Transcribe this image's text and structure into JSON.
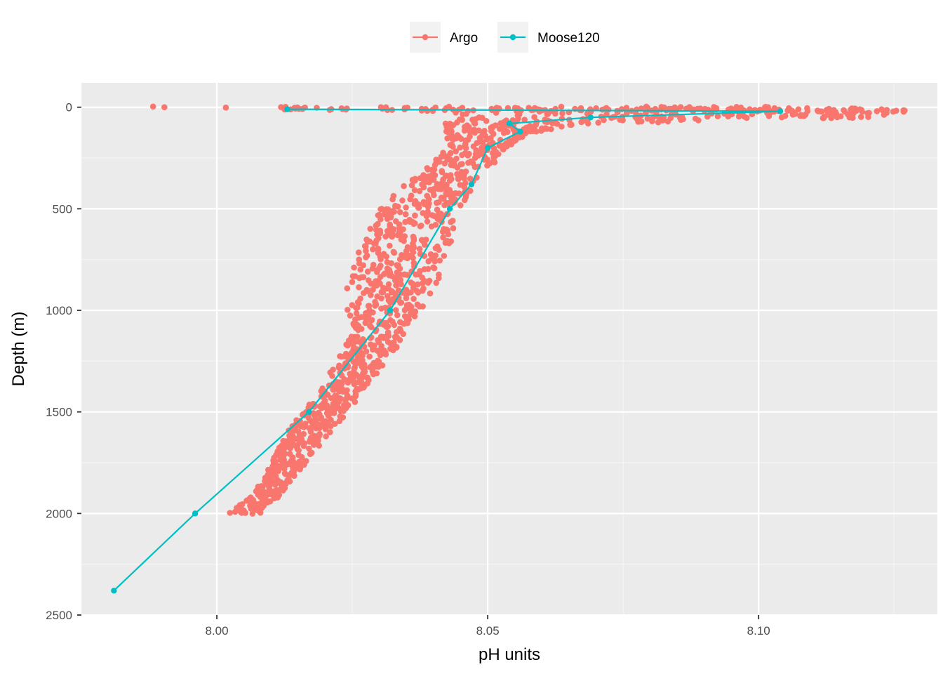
{
  "chart_data": {
    "type": "scatter",
    "xlabel": "pH units",
    "ylabel": "Depth (m)",
    "xlim": [
      7.975,
      8.133
    ],
    "ylim": [
      2500,
      -120
    ],
    "y_reversed": true,
    "grid": true,
    "legend_position": "top-center",
    "x_ticks": [
      "8.00",
      "8.05",
      "8.10"
    ],
    "x_tick_values": [
      8.0,
      8.05,
      8.1
    ],
    "y_ticks": [
      "0",
      "500",
      "1000",
      "1500",
      "2000",
      "2500"
    ],
    "y_tick_values": [
      0,
      500,
      1000,
      1500,
      2000,
      2500
    ],
    "series": [
      {
        "name": "Argo",
        "color": "#F8766D",
        "mode": "markers",
        "depth_profile": {
          "depths": [
            0,
            10,
            20,
            50,
            80,
            120,
            200,
            300,
            400,
            500,
            600,
            700,
            800,
            900,
            1000,
            1100,
            1200,
            1300,
            1400,
            1500,
            1600,
            1700,
            1800,
            1900,
            2000
          ],
          "ph_min": [
            7.982,
            8.005,
            8.04,
            8.045,
            8.042,
            8.042,
            8.043,
            8.038,
            8.034,
            8.03,
            8.028,
            8.026,
            8.025,
            8.024,
            8.024,
            8.025,
            8.023,
            8.021,
            8.019,
            8.016,
            8.013,
            8.011,
            8.009,
            8.007,
            8.002
          ],
          "ph_max": [
            8.105,
            8.124,
            8.131,
            8.122,
            8.07,
            8.058,
            8.054,
            8.05,
            8.047,
            8.045,
            8.044,
            8.043,
            8.042,
            8.04,
            8.038,
            8.035,
            8.033,
            8.03,
            8.027,
            8.024,
            8.021,
            8.018,
            8.015,
            8.012,
            8.008
          ]
        }
      },
      {
        "name": "Moose120",
        "color": "#00BFC4",
        "mode": "lines+markers",
        "points": [
          {
            "x": 8.013,
            "y": 10
          },
          {
            "x": 8.104,
            "y": 20
          },
          {
            "x": 8.069,
            "y": 50
          },
          {
            "x": 8.054,
            "y": 80
          },
          {
            "x": 8.056,
            "y": 120
          },
          {
            "x": 8.05,
            "y": 200
          },
          {
            "x": 8.047,
            "y": 380
          },
          {
            "x": 8.043,
            "y": 500
          },
          {
            "x": 8.032,
            "y": 1000
          },
          {
            "x": 8.017,
            "y": 1500
          },
          {
            "x": 7.996,
            "y": 2000
          },
          {
            "x": 7.981,
            "y": 2380
          }
        ]
      }
    ]
  }
}
